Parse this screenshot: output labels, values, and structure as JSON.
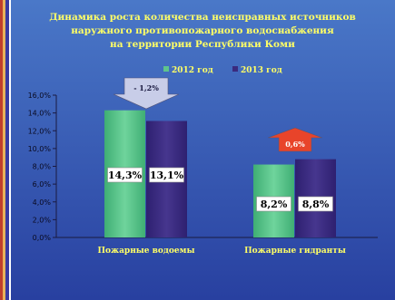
{
  "chart_data": {
    "type": "bar",
    "title_lines": [
      "Динамика  роста количества неисправных источников",
      "наружного противопожарного водоснабжения",
      "на территории Республики Коми"
    ],
    "categories": [
      "Пожарные водоемы",
      "Пожарные гидранты"
    ],
    "series": [
      {
        "name": "2012 год",
        "values": [
          14.3,
          8.2
        ],
        "labels": [
          "14,3%",
          "8,2%"
        ],
        "color": "#5fc48c"
      },
      {
        "name": "2013 год",
        "values": [
          13.1,
          8.8
        ],
        "labels": [
          "13,1%",
          "8,8%"
        ],
        "color": "#3a2a7e"
      }
    ],
    "y_ticks": [
      "0,0%",
      "2,0%",
      "4,0%",
      "6,0%",
      "8,0%",
      "10,0%",
      "12,0%",
      "14,0%",
      "16,0%"
    ],
    "ylim": [
      0,
      16
    ],
    "legend_position": "top",
    "grid": false,
    "annotations": [
      {
        "text": "- 1,2%",
        "direction": "down",
        "category": 0,
        "color": "#c8cde8"
      },
      {
        "text": "0,6%",
        "direction": "up",
        "category": 1,
        "color": "#e8442a"
      }
    ],
    "colors": {
      "background_top": "#4a78c8",
      "background_bottom": "#2840a0",
      "title_text": "#ffff66",
      "legend_text": "#ffff66",
      "category_text": "#ffff66",
      "stripe_dark": "#c0402c",
      "stripe_mid": "#e8b25a",
      "stripe_accent": "#3a3aa0"
    }
  }
}
